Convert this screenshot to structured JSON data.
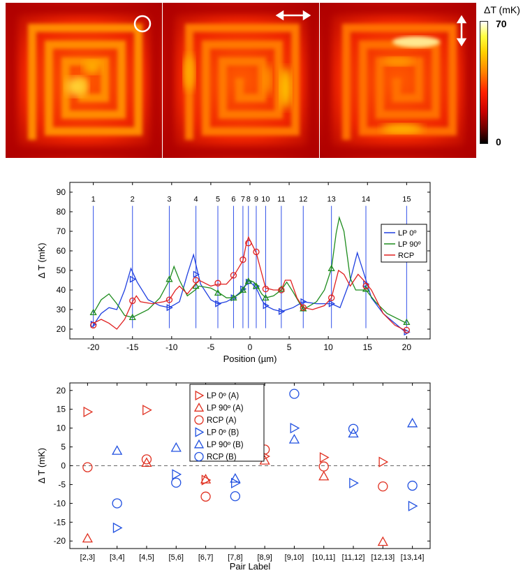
{
  "heatmap_panel": {
    "colorbar_title": "ΔT (mK)",
    "colorbar_max": "70",
    "colorbar_min": "0",
    "polarization_icons": [
      "circular-polarization-icon",
      "horizontal-arrow-icon",
      "vertical-arrow-icon"
    ],
    "colors": {
      "hot": "#ffffff",
      "warm": "#ff4000",
      "cold": "#000000"
    }
  },
  "chart_data": [
    {
      "type": "line",
      "xlabel": "Position (µm)",
      "ylabel": "Δ T (mK)",
      "xlim": [
        -23,
        23
      ],
      "ylim": [
        15,
        95
      ],
      "xticks": [
        -20,
        -15,
        -10,
        -5,
        0,
        5,
        10,
        15,
        20
      ],
      "yticks": [
        20,
        30,
        40,
        50,
        60,
        70,
        80,
        90
      ],
      "grid": false,
      "legend_position": "right",
      "markers": {
        "labels": [
          "1",
          "2",
          "3",
          "4",
          "5",
          "6",
          "7",
          "8",
          "9",
          "10",
          "11",
          "12",
          "13",
          "14",
          "15"
        ],
        "positions": [
          -20,
          -15,
          -10.3,
          -6.9,
          -4.1,
          -2.1,
          -0.9,
          -0.2,
          0.8,
          2,
          4,
          6.8,
          10.4,
          14.8,
          20
        ]
      },
      "series": [
        {
          "name": "LP 0º",
          "color": "#2040e0",
          "marker": "triangle-right",
          "curve": [
            [
              -20,
              22
            ],
            [
              -19,
              28
            ],
            [
              -18,
              31
            ],
            [
              -17,
              30
            ],
            [
              -16,
              40
            ],
            [
              -15.2,
              51
            ],
            [
              -14.4,
              44
            ],
            [
              -13,
              35
            ],
            [
              -11.5,
              32
            ],
            [
              -10.3,
              31
            ],
            [
              -9,
              34
            ],
            [
              -8,
              48
            ],
            [
              -7.2,
              58
            ],
            [
              -6.3,
              43
            ],
            [
              -5,
              35
            ],
            [
              -4.1,
              33
            ],
            [
              -3,
              34
            ],
            [
              -2.1,
              36
            ],
            [
              -1.2,
              39
            ],
            [
              -0.5,
              43
            ],
            [
              -0.2,
              45
            ],
            [
              0.3,
              43
            ],
            [
              0.8,
              41
            ],
            [
              1.5,
              35
            ],
            [
              2,
              32
            ],
            [
              3,
              30
            ],
            [
              4,
              29
            ],
            [
              5.5,
              31
            ],
            [
              6.8,
              34
            ],
            [
              8.5,
              33
            ],
            [
              10.4,
              33
            ],
            [
              11.5,
              31
            ],
            [
              12.8,
              45
            ],
            [
              13.7,
              59
            ],
            [
              14.5,
              49
            ],
            [
              15.5,
              36
            ],
            [
              17,
              28
            ],
            [
              18.5,
              23
            ],
            [
              20,
              18
            ]
          ],
          "markers": [
            [
              -20,
              22.5
            ],
            [
              -15,
              45.5
            ],
            [
              -10.3,
              31
            ],
            [
              -6.9,
              48
            ],
            [
              -4.1,
              33
            ],
            [
              -2.1,
              36
            ],
            [
              -0.9,
              40.5
            ],
            [
              -0.2,
              44
            ],
            [
              0.8,
              42
            ],
            [
              2,
              32
            ],
            [
              4,
              29
            ],
            [
              6.8,
              34
            ],
            [
              10.4,
              33
            ],
            [
              14.8,
              43
            ],
            [
              20,
              18.5
            ]
          ]
        },
        {
          "name": "LP 90º",
          "color": "#1e8c1e",
          "marker": "triangle-up",
          "curve": [
            [
              -20,
              28
            ],
            [
              -19,
              35
            ],
            [
              -18,
              38
            ],
            [
              -17,
              33
            ],
            [
              -16,
              27
            ],
            [
              -15,
              26
            ],
            [
              -13,
              30
            ],
            [
              -11.5,
              36
            ],
            [
              -10.3,
              45
            ],
            [
              -9.7,
              52
            ],
            [
              -9,
              45
            ],
            [
              -8,
              37
            ],
            [
              -7,
              40
            ],
            [
              -6.5,
              42
            ],
            [
              -5,
              41
            ],
            [
              -4.1,
              39
            ],
            [
              -3,
              36
            ],
            [
              -2.1,
              36
            ],
            [
              -1,
              39
            ],
            [
              -0.5,
              43
            ],
            [
              -0.1,
              45
            ],
            [
              0.5,
              44
            ],
            [
              0.9,
              42
            ],
            [
              1.5,
              38
            ],
            [
              2,
              36
            ],
            [
              3,
              37
            ],
            [
              4,
              40
            ],
            [
              4.7,
              44
            ],
            [
              5.5,
              39
            ],
            [
              6.8,
              30
            ],
            [
              8.5,
              34
            ],
            [
              9.5,
              40
            ],
            [
              10.4,
              51
            ],
            [
              11,
              69
            ],
            [
              11.4,
              77
            ],
            [
              12,
              70
            ],
            [
              12.8,
              46
            ],
            [
              13.5,
              40
            ],
            [
              14.3,
              40
            ],
            [
              14.8,
              40
            ],
            [
              16,
              34
            ],
            [
              17.5,
              28
            ],
            [
              20,
              23
            ]
          ],
          "markers": [
            [
              -20,
              28.5
            ],
            [
              -15,
              26
            ],
            [
              -10.3,
              45.5
            ],
            [
              -6.9,
              42
            ],
            [
              -4.1,
              38.5
            ],
            [
              -2.1,
              36
            ],
            [
              -0.9,
              40
            ],
            [
              -0.2,
              44.5
            ],
            [
              0.8,
              42
            ],
            [
              2,
              36
            ],
            [
              4,
              40.5
            ],
            [
              6.8,
              30.5
            ],
            [
              10.4,
              51
            ],
            [
              14.8,
              40.5
            ],
            [
              20,
              23.5
            ]
          ]
        },
        {
          "name": "RCP",
          "color": "#e02020",
          "marker": "circle",
          "curve": [
            [
              -20,
              23
            ],
            [
              -19,
              25
            ],
            [
              -18,
              23
            ],
            [
              -17,
              20
            ],
            [
              -16,
              25
            ],
            [
              -15,
              34
            ],
            [
              -14.5,
              37
            ],
            [
              -14,
              34
            ],
            [
              -12.5,
              33
            ],
            [
              -11,
              34
            ],
            [
              -10.3,
              35
            ],
            [
              -9.5,
              40
            ],
            [
              -9,
              42
            ],
            [
              -8,
              38
            ],
            [
              -7,
              43
            ],
            [
              -6.5,
              45
            ],
            [
              -5,
              42
            ],
            [
              -4.1,
              43
            ],
            [
              -3,
              43
            ],
            [
              -2.1,
              47
            ],
            [
              -1.5,
              51
            ],
            [
              -0.9,
              55
            ],
            [
              -0.5,
              63
            ],
            [
              -0.2,
              67
            ],
            [
              0.3,
              63
            ],
            [
              0.8,
              59
            ],
            [
              1.4,
              50
            ],
            [
              2,
              41
            ],
            [
              3,
              40
            ],
            [
              4,
              40
            ],
            [
              4.5,
              45
            ],
            [
              5.2,
              45
            ],
            [
              6,
              36
            ],
            [
              6.8,
              31
            ],
            [
              8,
              30
            ],
            [
              9.5,
              32
            ],
            [
              10.4,
              36
            ],
            [
              11.3,
              50
            ],
            [
              12,
              48
            ],
            [
              12.8,
              42
            ],
            [
              13.8,
              48
            ],
            [
              14.5,
              45
            ],
            [
              15.5,
              40
            ],
            [
              17,
              28
            ],
            [
              18.5,
              22
            ],
            [
              20,
              19
            ]
          ],
          "markers": [
            [
              -20,
              22
            ],
            [
              -15,
              34.5
            ],
            [
              -10.3,
              35
            ],
            [
              -6.9,
              45
            ],
            [
              -4.1,
              43.5
            ],
            [
              -2.1,
              47.5
            ],
            [
              -0.9,
              55.5
            ],
            [
              -0.2,
              64
            ],
            [
              0.8,
              59.5
            ],
            [
              2,
              40.5
            ],
            [
              4,
              40
            ],
            [
              6.8,
              31
            ],
            [
              10.4,
              36
            ],
            [
              14.8,
              42
            ],
            [
              20,
              19.5
            ]
          ]
        }
      ]
    },
    {
      "type": "scatter",
      "xlabel": "Pair Label",
      "ylabel": "Δ T (mK)",
      "categories": [
        "[2,3]",
        "[3,4]",
        "[4,5]",
        "[5,6]",
        "[6,7]",
        "[7,8]",
        "[8,9]",
        "[9,10]",
        "[10,11]",
        "[11,12]",
        "[12,13]",
        "[13,14]"
      ],
      "ylim": [
        -22,
        22
      ],
      "yticks": [
        -20,
        -15,
        -10,
        -5,
        0,
        5,
        10,
        15,
        20
      ],
      "reference_line": 0,
      "legend_position": "top-center",
      "grid": false,
      "series": [
        {
          "name": "LP 0º (A)",
          "group": "A",
          "color": "#e03020",
          "marker": "triangle-right",
          "points": [
            [
              0,
              14.3
            ],
            [
              2,
              14.8
            ],
            [
              4,
              -3.8
            ],
            [
              6,
              2.5
            ],
            [
              8,
              2.2
            ],
            [
              10,
              1.0
            ]
          ]
        },
        {
          "name": "LP 90º (A)",
          "group": "A",
          "color": "#e03020",
          "marker": "triangle-up",
          "points": [
            [
              0,
              -19.3
            ],
            [
              2,
              0.8
            ],
            [
              4,
              -3.6
            ],
            [
              6,
              1.4
            ],
            [
              8,
              -2.8
            ],
            [
              10,
              -20.2
            ]
          ]
        },
        {
          "name": "RCP (A)",
          "group": "A",
          "color": "#e03020",
          "marker": "circle",
          "points": [
            [
              0,
              -0.4
            ],
            [
              2,
              1.7
            ],
            [
              4,
              -8.2
            ],
            [
              6,
              4.3
            ],
            [
              8,
              -0.2
            ],
            [
              10,
              -5.5
            ]
          ]
        },
        {
          "name": "LP 0º (B)",
          "group": "B",
          "color": "#2050e0",
          "marker": "triangle-right",
          "points": [
            [
              1,
              -16.5
            ],
            [
              3,
              -2.3
            ],
            [
              5,
              -4.6
            ],
            [
              7,
              10.0
            ],
            [
              9,
              -4.6
            ],
            [
              11,
              -10.7
            ]
          ]
        },
        {
          "name": "LP 90º (B)",
          "group": "B",
          "color": "#2050e0",
          "marker": "triangle-up",
          "points": [
            [
              1,
              4.0
            ],
            [
              3,
              4.8
            ],
            [
              5,
              -3.4
            ],
            [
              7,
              7.0
            ],
            [
              9,
              8.6
            ],
            [
              11,
              11.3
            ]
          ]
        },
        {
          "name": "RCP (B)",
          "group": "B",
          "color": "#2050e0",
          "marker": "circle",
          "points": [
            [
              1,
              -10.0
            ],
            [
              3,
              -4.5
            ],
            [
              5,
              -8.1
            ],
            [
              7,
              19.1
            ],
            [
              9,
              9.8
            ],
            [
              11,
              -5.3
            ]
          ]
        }
      ]
    }
  ]
}
